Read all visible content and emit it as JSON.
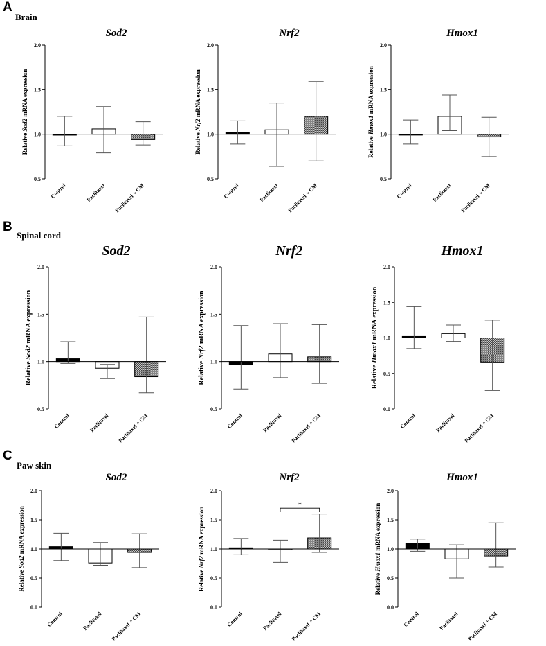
{
  "panels": [
    {
      "letter": "A",
      "tissue": "Brain"
    },
    {
      "letter": "B",
      "tissue": "Spinal cord"
    },
    {
      "letter": "C",
      "tissue": "Paw skin"
    }
  ],
  "colors": {
    "control_fill": "#000000",
    "paclitaxel_fill": "#ffffff",
    "cm_fill": "#9a9a9a",
    "line": "#000000",
    "error_bar": "#555555"
  },
  "chart_data": [
    {
      "type": "bar",
      "panel": "A",
      "tissue": "Brain",
      "title": "Sod2",
      "gene": "Sod2",
      "ylabel_prefix": "Relative ",
      "ylabel_suffix": " mRNA expression",
      "categories": [
        "Control",
        "Paclitaxel",
        "Paclitaxel + CM"
      ],
      "values": [
        0.99,
        1.06,
        0.94
      ],
      "err_high": [
        1.2,
        1.31,
        1.14
      ],
      "err_low": [
        0.87,
        0.79,
        0.88
      ],
      "ylim": [
        0.5,
        2.0
      ],
      "yticks": [
        "0.5",
        "1.0",
        "1.5",
        "2.0"
      ],
      "baseline": 1.0
    },
    {
      "type": "bar",
      "panel": "A",
      "tissue": "Brain",
      "title": "Nrf2",
      "gene": "Nrf2",
      "ylabel_prefix": "Relative ",
      "ylabel_suffix": " mRNA expression",
      "categories": [
        "Control",
        "Paclitaxel",
        "Paclitaxel + CM"
      ],
      "values": [
        1.02,
        1.05,
        1.2
      ],
      "err_high": [
        1.15,
        1.35,
        1.59
      ],
      "err_low": [
        0.89,
        0.64,
        0.7
      ],
      "ylim": [
        0.5,
        2.0
      ],
      "yticks": [
        "0.5",
        "1.0",
        "1.5",
        "2.0"
      ],
      "baseline": 1.0
    },
    {
      "type": "bar",
      "panel": "A",
      "tissue": "Brain",
      "title": "Hmox1",
      "gene": "Hmox1",
      "ylabel_prefix": "Relative ",
      "ylabel_suffix": " mRNA expression",
      "categories": [
        "Control",
        "Paclitaxel",
        "Paclitaxel + CM"
      ],
      "values": [
        1.0,
        1.2,
        0.97
      ],
      "err_high": [
        1.16,
        1.44,
        1.19
      ],
      "err_low": [
        0.89,
        1.04,
        0.75
      ],
      "ylim": [
        0.5,
        2.0
      ],
      "yticks": [
        "0.5",
        "1.0",
        "1.5",
        "2.0"
      ],
      "baseline": 1.0
    },
    {
      "type": "bar",
      "panel": "B",
      "tissue": "Spinal cord",
      "title": "Sod2",
      "gene": "Sod2",
      "ylabel_prefix": "Relative ",
      "ylabel_suffix": " mRNA expression",
      "categories": [
        "Control",
        "Paclitaxel",
        "Paclitaxel + CM"
      ],
      "values": [
        1.03,
        0.93,
        0.84
      ],
      "err_high": [
        1.21,
        0.97,
        1.47
      ],
      "err_low": [
        0.98,
        0.82,
        0.67
      ],
      "ylim": [
        0.5,
        2.0
      ],
      "yticks": [
        "0.5",
        "1.0",
        "1.5",
        "2.0"
      ],
      "baseline": 1.0
    },
    {
      "type": "bar",
      "panel": "B",
      "tissue": "Spinal cord",
      "title": "Nrf2",
      "gene": "Nrf2",
      "ylabel_prefix": "Relative ",
      "ylabel_suffix": " mRNA expression",
      "categories": [
        "Control",
        "Paclitaxel",
        "Paclitaxel + CM"
      ],
      "values": [
        0.97,
        1.08,
        1.05
      ],
      "err_high": [
        1.38,
        1.4,
        1.39
      ],
      "err_low": [
        0.71,
        0.83,
        0.77
      ],
      "ylim": [
        0.5,
        2.0
      ],
      "yticks": [
        "0.5",
        "1.0",
        "1.5",
        "2.0"
      ],
      "baseline": 1.0
    },
    {
      "type": "bar",
      "panel": "B",
      "tissue": "Spinal cord",
      "title": "Hmox1",
      "gene": "Hmox1",
      "ylabel_prefix": "Relative ",
      "ylabel_suffix": " mRNA expression",
      "categories": [
        "Control",
        "Paclitaxel",
        "Paclitaxel + CM"
      ],
      "values": [
        1.02,
        1.06,
        0.66
      ],
      "err_high": [
        1.44,
        1.18,
        1.25
      ],
      "err_low": [
        0.85,
        0.95,
        0.26
      ],
      "ylim": [
        0.0,
        2.0
      ],
      "yticks": [
        "0.0",
        "0.5",
        "1.0",
        "1.5",
        "2.0"
      ],
      "baseline": 1.0
    },
    {
      "type": "bar",
      "panel": "C",
      "tissue": "Paw skin",
      "title": "Sod2",
      "gene": "Sod2",
      "ylabel_prefix": "Relative ",
      "ylabel_suffix": " mRNA expression",
      "categories": [
        "Control",
        "Paclitaxel",
        "Paclitaxel + CM"
      ],
      "values": [
        1.04,
        0.76,
        0.94
      ],
      "err_high": [
        1.27,
        1.11,
        1.26
      ],
      "err_low": [
        0.8,
        0.72,
        0.68
      ],
      "ylim": [
        0.0,
        2.0
      ],
      "yticks": [
        "0.0",
        "0.5",
        "1.0",
        "1.5",
        "2.0"
      ],
      "baseline": 1.0
    },
    {
      "type": "bar",
      "panel": "C",
      "tissue": "Paw skin",
      "title": "Nrf2",
      "gene": "Nrf2",
      "ylabel_prefix": "Relative ",
      "ylabel_suffix": " mRNA expression",
      "categories": [
        "Control",
        "Paclitaxel",
        "Paclitaxel + CM"
      ],
      "values": [
        1.02,
        0.99,
        1.19
      ],
      "err_high": [
        1.18,
        1.15,
        1.6
      ],
      "err_low": [
        0.9,
        0.77,
        0.94
      ],
      "ylim": [
        0.0,
        2.0
      ],
      "yticks": [
        "0.0",
        "0.5",
        "1.0",
        "1.5",
        "2.0"
      ],
      "baseline": 1.0,
      "significance": {
        "from": 1,
        "to": 2,
        "label": "*",
        "level": 1.7
      }
    },
    {
      "type": "bar",
      "panel": "C",
      "tissue": "Paw skin",
      "title": "Hmox1",
      "gene": "Hmox1",
      "ylabel_prefix": "Relative ",
      "ylabel_suffix": " mRNA expression",
      "categories": [
        "Control",
        "Paclitaxel",
        "Paclitaxel + CM"
      ],
      "values": [
        1.1,
        0.83,
        0.88
      ],
      "err_high": [
        1.17,
        1.07,
        1.45
      ],
      "err_low": [
        0.96,
        0.5,
        0.69
      ],
      "ylim": [
        0.0,
        2.0
      ],
      "yticks": [
        "0.0",
        "0.5",
        "1.0",
        "1.5",
        "2.0"
      ],
      "baseline": 1.0
    }
  ]
}
